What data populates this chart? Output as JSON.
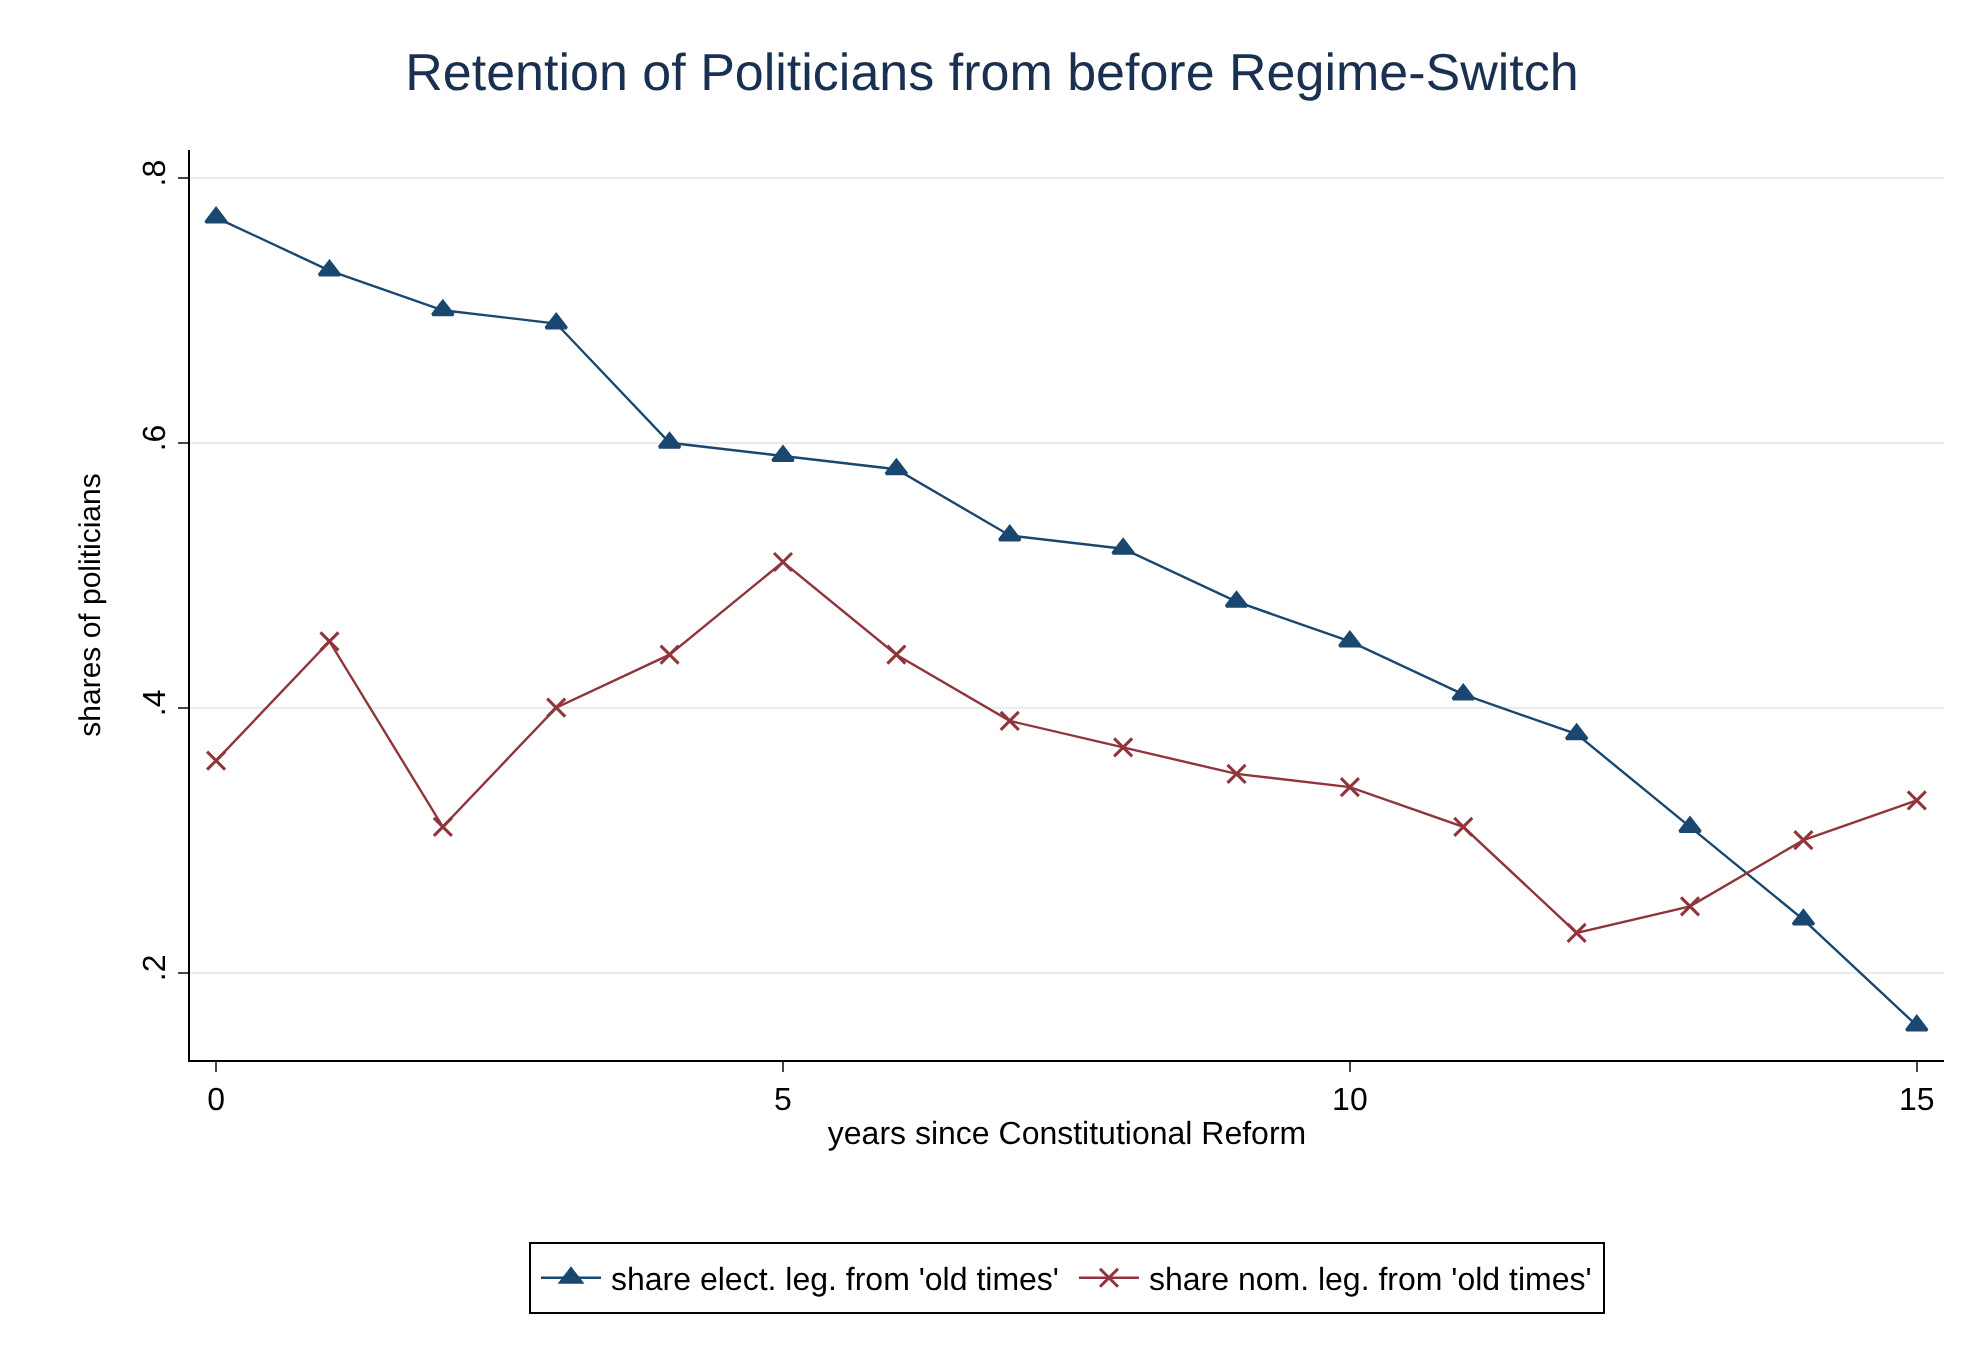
{
  "chart_data": {
    "type": "line",
    "title": "Retention of Politicians from before Regime-Switch",
    "xlabel": "years since Constitutional Reform",
    "ylabel": "shares of politicians",
    "x": [
      0,
      1,
      2,
      3,
      4,
      5,
      6,
      7,
      8,
      9,
      10,
      11,
      12,
      13,
      14,
      15
    ],
    "series": [
      {
        "name": "share elect. leg. from 'old times'",
        "color": "#1a476f",
        "marker": "triangle",
        "values": [
          0.77,
          0.73,
          0.7,
          0.69,
          0.6,
          0.59,
          0.58,
          0.53,
          0.52,
          0.48,
          0.45,
          0.41,
          0.38,
          0.31,
          0.24,
          0.16
        ]
      },
      {
        "name": "share nom. leg. from 'old times'",
        "color": "#90353b",
        "marker": "cross",
        "values": [
          0.36,
          0.45,
          0.31,
          0.4,
          0.44,
          0.51,
          0.44,
          0.39,
          0.37,
          0.35,
          0.34,
          0.31,
          0.23,
          0.25,
          0.3,
          0.33
        ]
      }
    ],
    "xlim": [
      -0.23,
      15.24
    ],
    "xticks": [
      0,
      5,
      10,
      15
    ],
    "ylim": [
      0.134,
      0.821
    ],
    "yticks": [
      {
        "value": 0.2,
        "label": ".2"
      },
      {
        "value": 0.4,
        "label": ".4"
      },
      {
        "value": 0.6,
        "label": ".6"
      },
      {
        "value": 0.8,
        "label": ".8"
      }
    ],
    "grid": "y",
    "legend": "bottom",
    "line_style": "solid"
  }
}
